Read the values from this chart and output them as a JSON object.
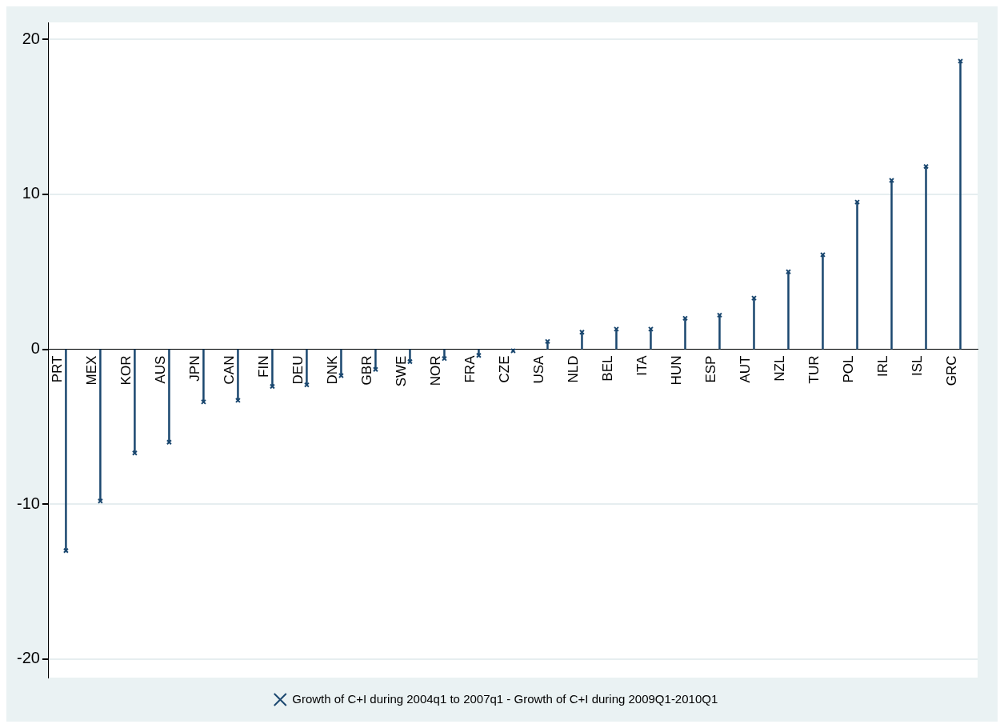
{
  "chart_data": {
    "type": "lollipop",
    "categories": [
      "PRT",
      "MEX",
      "KOR",
      "AUS",
      "JPN",
      "CAN",
      "FIN",
      "DEU",
      "DNK",
      "GBR",
      "SWE",
      "NOR",
      "FRA",
      "CZE",
      "USA",
      "NLD",
      "BEL",
      "ITA",
      "HUN",
      "ESP",
      "AUT",
      "NZL",
      "TUR",
      "POL",
      "IRL",
      "ISL",
      "GRC"
    ],
    "series": [
      {
        "name": "Growth of C+I during 2004q1 to 2007q1 - Growth of C+I during 2009Q1-2010Q1",
        "color": "#1a476f",
        "values": [
          -13.0,
          -9.8,
          -6.7,
          -6.0,
          -3.4,
          -3.3,
          -2.4,
          -2.3,
          -1.7,
          -1.3,
          -0.8,
          -0.6,
          -0.4,
          -0.1,
          0.5,
          1.1,
          1.3,
          1.3,
          2.0,
          2.2,
          3.3,
          5.0,
          6.1,
          9.5,
          10.9,
          11.8,
          18.6
        ]
      }
    ],
    "ylim": [
      -21.2,
      21.1
    ],
    "yticks": [
      -20,
      -10,
      0,
      10,
      20
    ],
    "grid": "y",
    "marker": "cross",
    "legend": "bottom"
  }
}
